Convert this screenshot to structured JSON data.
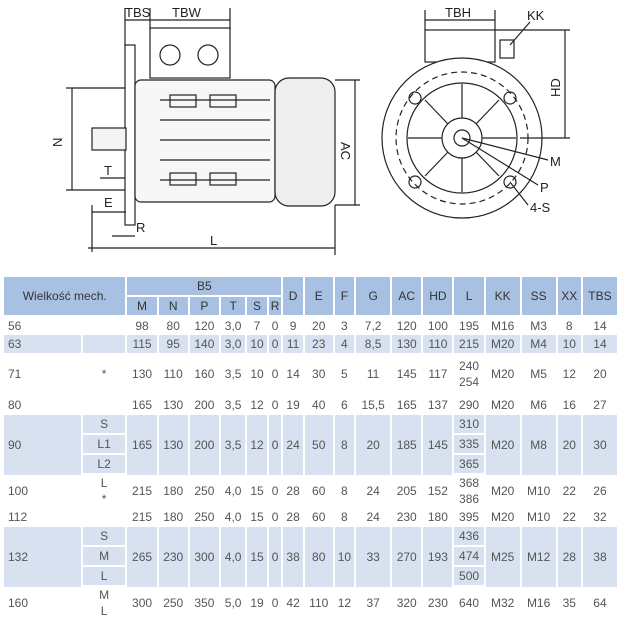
{
  "drawing": {
    "labels": {
      "tbs": "TBS",
      "tbw": "TBW",
      "tbh": "TBH",
      "kk": "KK",
      "n": "N",
      "t": "T",
      "e": "E",
      "r": "R",
      "l": "L",
      "ac": "AC",
      "hd": "HD",
      "m": "M",
      "p": "P",
      "s4": "4-S"
    }
  },
  "table": {
    "header": {
      "size": "Wielkość mech.",
      "group": "B5",
      "b5": [
        "M",
        "N",
        "P",
        "T",
        "S",
        "R"
      ],
      "rest": [
        "D",
        "E",
        "F",
        "G",
        "AC",
        "HD",
        "L",
        "KK",
        "SS",
        "XX",
        "TBS"
      ]
    },
    "rows": [
      {
        "size": "56",
        "sub": "",
        "shade": false,
        "b5": [
          "98",
          "80",
          "120",
          "3,0",
          "7",
          "0"
        ],
        "rest": [
          "9",
          "20",
          "3",
          "7,2",
          "120",
          "100",
          [
            "195"
          ],
          "M16",
          "M3",
          "8",
          "14"
        ]
      },
      {
        "size": "63",
        "sub": "",
        "shade": true,
        "b5": [
          "115",
          "95",
          "140",
          "3,0",
          "10",
          "0"
        ],
        "rest": [
          "11",
          "23",
          "4",
          "8,5",
          "130",
          "110",
          [
            "215"
          ],
          "M20",
          "M4",
          "10",
          "14"
        ]
      },
      {
        "size": "71",
        "sub": "*",
        "shade": false,
        "b5": [
          "130",
          "110",
          "160",
          "3,5",
          "10",
          "0"
        ],
        "rest": [
          "14",
          "30",
          "5",
          "11",
          "145",
          "117",
          [
            "240",
            "254"
          ],
          "M20",
          "M5",
          "12",
          "20"
        ]
      },
      {
        "size": "80",
        "sub": "",
        "shade": false,
        "b5": [
          "165",
          "130",
          "200",
          "3,5",
          "12",
          "0"
        ],
        "rest": [
          "19",
          "40",
          "6",
          "15,5",
          "165",
          "137",
          [
            "290"
          ],
          "M20",
          "M6",
          "16",
          "27"
        ]
      },
      {
        "size": "90",
        "sub": [
          "S",
          "L1",
          "L2"
        ],
        "split": true,
        "shade": true,
        "b5": [
          "165",
          "130",
          "200",
          "3,5",
          "12",
          "0"
        ],
        "rest": [
          "24",
          "50",
          "8",
          "20",
          "185",
          "145",
          [
            "310",
            "335",
            "365"
          ],
          "M20",
          "M8",
          "20",
          "30"
        ]
      },
      {
        "size": "100",
        "sub": "L\n*",
        "shade": false,
        "b5": [
          "215",
          "180",
          "250",
          "4,0",
          "15",
          "0"
        ],
        "rest": [
          "28",
          "60",
          "8",
          "24",
          "205",
          "152",
          [
            "368",
            "386"
          ],
          "M20",
          "M10",
          "22",
          "26"
        ]
      },
      {
        "size": "112",
        "sub": "",
        "shade": false,
        "b5": [
          "215",
          "180",
          "250",
          "4,0",
          "15",
          "0"
        ],
        "rest": [
          "28",
          "60",
          "8",
          "24",
          "230",
          "180",
          [
            "395"
          ],
          "M20",
          "M10",
          "22",
          "32"
        ]
      },
      {
        "size": "132",
        "sub": [
          "S",
          "M",
          "L"
        ],
        "split": true,
        "shade": true,
        "b5": [
          "265",
          "230",
          "300",
          "4,0",
          "15",
          "0"
        ],
        "rest": [
          "38",
          "80",
          "10",
          "33",
          "270",
          "193",
          [
            "436",
            "474",
            "500"
          ],
          "M25",
          "M12",
          "28",
          "38"
        ]
      },
      {
        "size": "160",
        "sub": "M\nL",
        "shade": false,
        "b5": [
          "300",
          "250",
          "350",
          "5,0",
          "19",
          "0"
        ],
        "rest": [
          "42",
          "110",
          "12",
          "37",
          "320",
          "230",
          [
            "640"
          ],
          "M32",
          "M16",
          "35",
          "64"
        ]
      }
    ]
  }
}
